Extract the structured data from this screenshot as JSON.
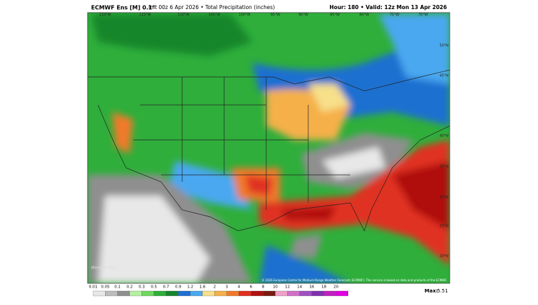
{
  "header": {
    "model": "ECMWF Ens [M] 0.1°",
    "info": "Init 00z 6 Apr 2026 • Total Precipitation (inches)",
    "valid": "Hour: 180 • Valid: 12z Mon 13 Apr 2026"
  },
  "map": {
    "longitude_labels": [
      "120°W",
      "115°W",
      "110°W",
      "105°W",
      "100°W",
      "95°W",
      "90°W",
      "85°W",
      "80°W",
      "75°W",
      "70°W"
    ],
    "latitude_labels": [
      "50°N",
      "45°N",
      "40°N",
      "35°N",
      "30°N",
      "25°N",
      "20°N"
    ],
    "logo": "WeatherBELL",
    "credit": "© 2026 European Centre for Medium-Range Weather Forecasts (ECMWF). This service is based on data and products of the ECMWF."
  },
  "legend": {
    "levels": [
      "0.01",
      "0.05",
      "0.1",
      "0.2",
      "0.3",
      "0.5",
      "0.7",
      "0.9",
      "1.2",
      "1.6",
      "2",
      "3",
      "4",
      "6",
      "8",
      "10",
      "12",
      "14",
      "16",
      "18",
      "20"
    ],
    "colors": [
      "#e8e8e8",
      "#bdbdbd",
      "#8f8f8f",
      "#b5f0a0",
      "#6fd760",
      "#2fae3b",
      "#14862a",
      "#1e6fd0",
      "#4aa8f0",
      "#f7e08a",
      "#f5b04a",
      "#f07a2a",
      "#e03020",
      "#b01010",
      "#7a1a10",
      "#f0a0c8",
      "#d070c8",
      "#a050c0",
      "#8030b0",
      "#c020c0",
      "#e000e0"
    ],
    "max_label": "Max:",
    "max_value": "5.51"
  }
}
